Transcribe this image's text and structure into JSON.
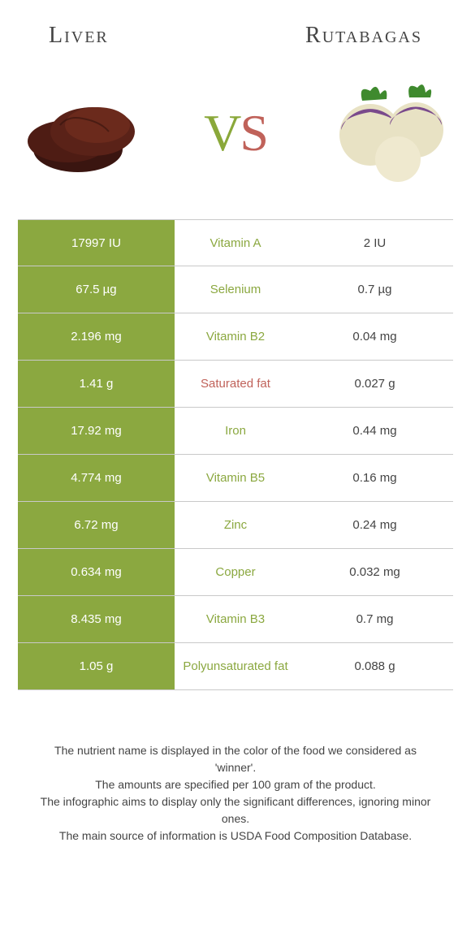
{
  "header": {
    "left_title": "Liver",
    "right_title": "Rutabagas",
    "vs_v": "V",
    "vs_s": "S"
  },
  "colors": {
    "left_food": "#8ba840",
    "right_food": "#c0625a",
    "mid_bg": "#ffffff",
    "right_bg": "#ffffff",
    "row_divider": "#c9c9c9",
    "title_text": "#444444",
    "footer_text": "#444444"
  },
  "table": {
    "rows": [
      {
        "left": "17997 IU",
        "mid": "Vitamin A",
        "right": "2 IU",
        "winner": "left"
      },
      {
        "left": "67.5 µg",
        "mid": "Selenium",
        "right": "0.7 µg",
        "winner": "left"
      },
      {
        "left": "2.196 mg",
        "mid": "Vitamin B2",
        "right": "0.04 mg",
        "winner": "left"
      },
      {
        "left": "1.41 g",
        "mid": "Saturated fat",
        "right": "0.027 g",
        "winner": "right"
      },
      {
        "left": "17.92 mg",
        "mid": "Iron",
        "right": "0.44 mg",
        "winner": "left"
      },
      {
        "left": "4.774 mg",
        "mid": "Vitamin B5",
        "right": "0.16 mg",
        "winner": "left"
      },
      {
        "left": "6.72 mg",
        "mid": "Zinc",
        "right": "0.24 mg",
        "winner": "left"
      },
      {
        "left": "0.634 mg",
        "mid": "Copper",
        "right": "0.032 mg",
        "winner": "left"
      },
      {
        "left": "8.435 mg",
        "mid": "Vitamin B3",
        "right": "0.7 mg",
        "winner": "left"
      },
      {
        "left": "1.05 g",
        "mid": "Polyunsaturated fat",
        "right": "0.088 g",
        "winner": "left"
      }
    ]
  },
  "footer_lines": [
    "The nutrient name is displayed in the color of the food we considered as 'winner'.",
    "The amounts are specified per 100 gram of the product.",
    "The infographic aims to display only the significant differences, ignoring minor ones.",
    "The main source of information is USDA Food Composition Database."
  ],
  "icons": {
    "left_food_name": "liver-illustration",
    "right_food_name": "rutabagas-illustration"
  }
}
